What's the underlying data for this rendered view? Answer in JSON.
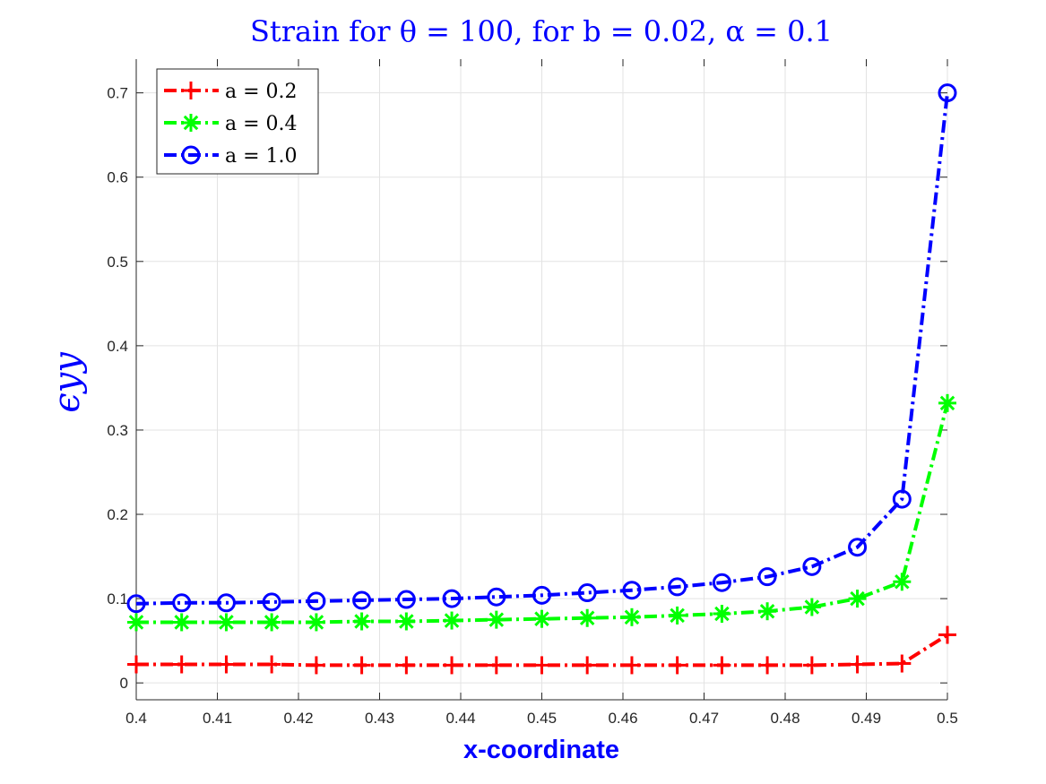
{
  "chart_data": {
    "type": "line",
    "title": "Strain for θ = 100, for b = 0.02, α = 0.1",
    "xlabel": "x-coordinate",
    "ylabel": "ϵyy",
    "xlim": [
      0.4,
      0.5
    ],
    "ylim": [
      -0.02,
      0.74
    ],
    "xticks": [
      0.4,
      0.41,
      0.42,
      0.43,
      0.44,
      0.45,
      0.46,
      0.47,
      0.48,
      0.49,
      0.5
    ],
    "yticks": [
      0,
      0.1,
      0.2,
      0.3,
      0.4,
      0.5,
      0.6,
      0.7
    ],
    "grid": true,
    "legend_position": "top-left",
    "x": [
      0.4,
      0.4056,
      0.4111,
      0.4167,
      0.4222,
      0.4278,
      0.4333,
      0.4389,
      0.4444,
      0.45,
      0.4556,
      0.4611,
      0.4667,
      0.4722,
      0.4778,
      0.4833,
      0.4889,
      0.4944,
      0.5
    ],
    "series": [
      {
        "name": "a = 0.2",
        "color": "#ff0000",
        "marker": "plus",
        "values": [
          0.022,
          0.022,
          0.022,
          0.022,
          0.021,
          0.021,
          0.021,
          0.021,
          0.021,
          0.021,
          0.021,
          0.021,
          0.021,
          0.021,
          0.021,
          0.021,
          0.022,
          0.023,
          0.057
        ]
      },
      {
        "name": "a = 0.4",
        "color": "#00ff00",
        "marker": "asterisk",
        "values": [
          0.072,
          0.072,
          0.072,
          0.072,
          0.072,
          0.073,
          0.073,
          0.074,
          0.075,
          0.076,
          0.077,
          0.078,
          0.08,
          0.082,
          0.085,
          0.09,
          0.1,
          0.12,
          0.332
        ]
      },
      {
        "name": "a = 1.0",
        "color": "#0000ff",
        "marker": "circle",
        "values": [
          0.094,
          0.095,
          0.095,
          0.096,
          0.097,
          0.098,
          0.099,
          0.1,
          0.102,
          0.104,
          0.107,
          0.11,
          0.114,
          0.119,
          0.126,
          0.138,
          0.161,
          0.218,
          0.7
        ]
      }
    ]
  }
}
